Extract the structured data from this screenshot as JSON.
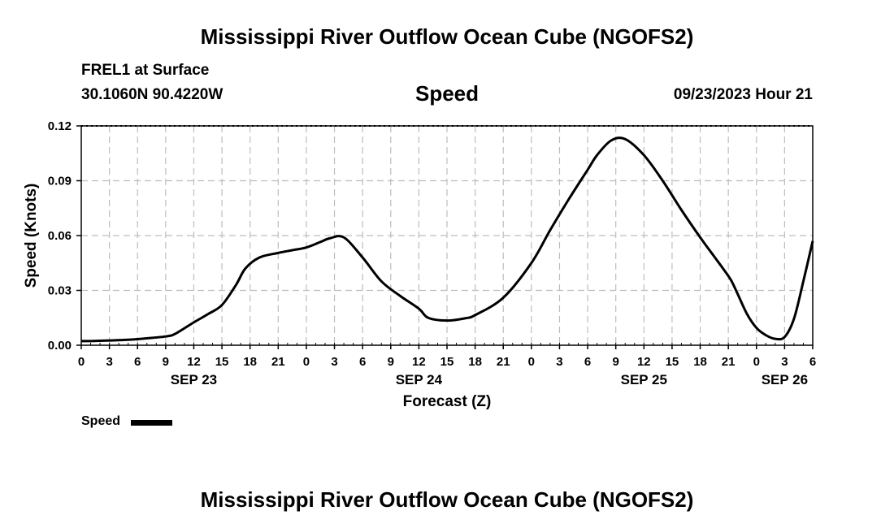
{
  "header": {
    "title": "Mississippi River Outflow Ocean Cube (NGOFS2)",
    "station": "FREL1 at Surface",
    "coordinates": "30.1060N  90.4220W",
    "variable": "Speed",
    "datetime": "09/23/2023 Hour 21"
  },
  "footer": {
    "title": "Mississippi River Outflow Ocean Cube (NGOFS2)"
  },
  "legend": {
    "label": "Speed",
    "color": "#000000"
  },
  "chart_data": {
    "type": "line",
    "title": "Speed",
    "xlabel": "Forecast (Z)",
    "ylabel": "Speed (Knots)",
    "xlim": [
      0,
      78
    ],
    "ylim": [
      0,
      0.12
    ],
    "grid": true,
    "x_tick_values": [
      0,
      3,
      6,
      9,
      12,
      15,
      18,
      21,
      24,
      27,
      30,
      33,
      36,
      39,
      42,
      45,
      48,
      51,
      54,
      57,
      60,
      63,
      66,
      69,
      72,
      75,
      78
    ],
    "x_tick_labels": [
      "0",
      "3",
      "6",
      "9",
      "12",
      "15",
      "18",
      "21",
      "0",
      "3",
      "6",
      "9",
      "12",
      "15",
      "18",
      "21",
      "0",
      "3",
      "6",
      "9",
      "12",
      "15",
      "18",
      "21",
      "0",
      "3",
      "6"
    ],
    "day_labels": [
      {
        "label": "SEP 23",
        "x": 12
      },
      {
        "label": "SEP 24",
        "x": 36
      },
      {
        "label": "SEP 25",
        "x": 60
      },
      {
        "label": "SEP 26",
        "x": 75
      }
    ],
    "y_tick_values": [
      0,
      0.03,
      0.06,
      0.09,
      0.12
    ],
    "y_tick_labels": [
      "0.00",
      "0.03",
      "0.06",
      "0.09",
      "0.12"
    ],
    "series": [
      {
        "name": "Speed",
        "color": "#000000",
        "x": [
          0,
          1,
          3,
          5,
          7,
          9,
          10,
          12,
          13.5,
          15,
          16.5,
          17.5,
          19,
          21,
          22.5,
          24,
          25.5,
          26.5,
          28,
          30,
          32,
          34,
          36,
          37,
          39,
          41,
          42,
          45,
          48,
          50,
          52,
          54,
          55,
          56.5,
          58,
          60,
          62,
          64,
          66,
          67.5,
          68.5,
          69.3,
          70,
          71,
          72,
          73,
          74,
          75,
          76,
          77,
          78
        ],
        "y": [
          0.0023,
          0.0023,
          0.0026,
          0.003,
          0.0038,
          0.0048,
          0.0062,
          0.0125,
          0.017,
          0.022,
          0.033,
          0.042,
          0.048,
          0.0505,
          0.052,
          0.0535,
          0.0565,
          0.0585,
          0.059,
          0.048,
          0.035,
          0.027,
          0.02,
          0.015,
          0.0135,
          0.0148,
          0.0165,
          0.026,
          0.045,
          0.063,
          0.08,
          0.096,
          0.104,
          0.112,
          0.1128,
          0.104,
          0.09,
          0.074,
          0.059,
          0.0485,
          0.0415,
          0.0355,
          0.028,
          0.017,
          0.0095,
          0.0055,
          0.0035,
          0.0045,
          0.0145,
          0.035,
          0.057
        ]
      }
    ]
  }
}
